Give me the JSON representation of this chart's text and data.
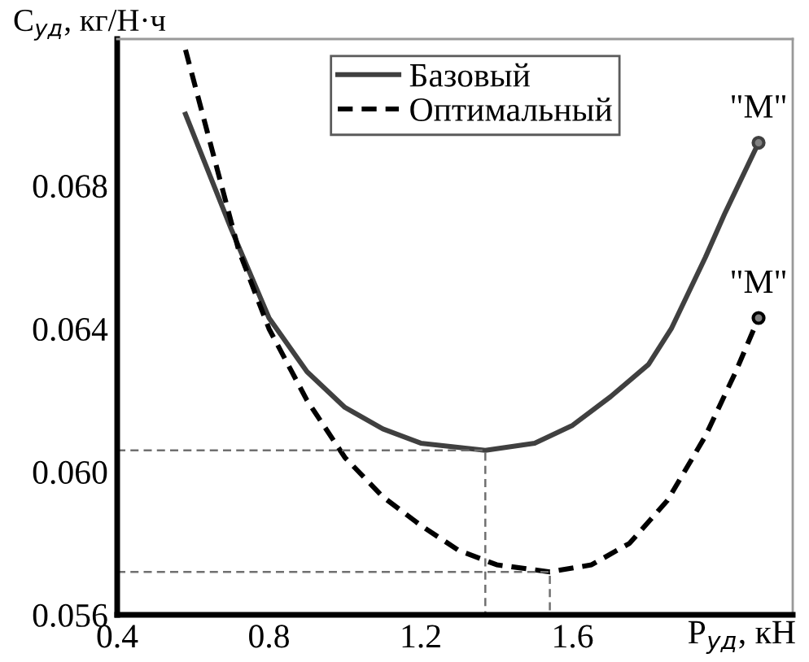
{
  "chart_data": {
    "type": "line",
    "xlabel": "P$_{уд}$, кН",
    "ylabel": "C$_{уд}$, кг/Н·ч",
    "xlim": [
      0.4,
      2.18
    ],
    "xticks": [
      0.4,
      0.8,
      1.2,
      1.6
    ],
    "ylim": [
      0.056,
      0.0721
    ],
    "yticks": [
      0.056,
      {
        "value": 0.06,
        "label": "0.060"
      },
      0.064,
      0.068
    ],
    "grid": false,
    "legend": "top",
    "series": [
      {
        "name": "Базовый",
        "color": "#404040",
        "line_style": "solid",
        "x": [
          0.58,
          0.7,
          0.8,
          0.9,
          1.0,
          1.1,
          1.2,
          1.37,
          1.5,
          1.6,
          1.7,
          1.8,
          1.86,
          1.95,
          2.0,
          2.09
        ],
        "values": [
          0.07,
          0.0668,
          0.0643,
          0.0628,
          0.0618,
          0.0612,
          0.0608,
          0.0606,
          0.0608,
          0.0613,
          0.0621,
          0.063,
          0.064,
          0.066,
          0.0672,
          0.0692
        ]
      },
      {
        "name": "Оптимальный",
        "color": "#000000",
        "line_style": "dashed",
        "x": [
          0.58,
          0.65,
          0.72,
          0.8,
          0.9,
          1.0,
          1.1,
          1.2,
          1.3,
          1.4,
          1.54,
          1.65,
          1.75,
          1.85,
          1.95,
          2.03,
          2.09
        ],
        "values": [
          0.0718,
          0.069,
          0.0662,
          0.064,
          0.062,
          0.0604,
          0.0593,
          0.0585,
          0.0578,
          0.0574,
          0.0572,
          0.0574,
          0.058,
          0.0592,
          0.061,
          0.0628,
          0.0643
        ]
      },
      {
        "color": "#707070",
        "line_style": "dashed",
        "x": [
          0.4,
          1.37,
          1.37
        ],
        "values": [
          0.0606,
          0.0606,
          0.056
        ]
      },
      {
        "color": "#707070",
        "line_style": "dashed",
        "x": [
          0.4,
          1.54,
          1.54
        ],
        "values": [
          0.0572,
          0.0572,
          0.056
        ]
      },
      {
        "type": "scatter",
        "color": "#404040",
        "marker": "circle",
        "x": [
          2.09
        ],
        "values": [
          0.0692
        ]
      },
      {
        "type": "scatter",
        "color": "#000000",
        "marker": "circle",
        "x": [
          2.09
        ],
        "values": [
          0.0643
        ]
      }
    ],
    "annotations": [
      {
        "text": "\"M\"",
        "x": 2.09,
        "y": 0.0692
      },
      {
        "text": "\"M\"",
        "x": 2.09,
        "y": 0.0643
      }
    ]
  }
}
